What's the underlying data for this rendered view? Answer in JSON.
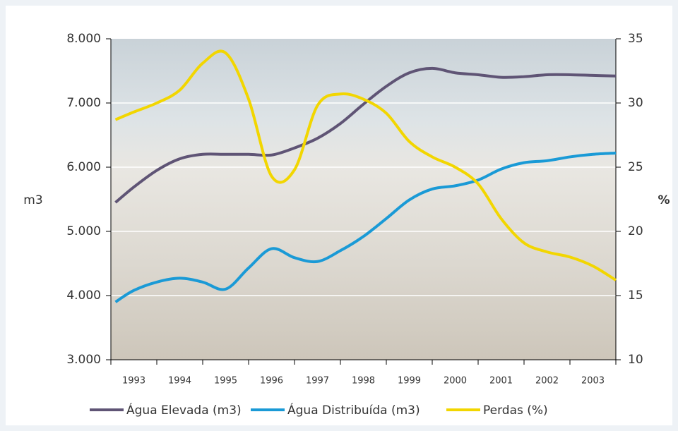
{
  "chart_data": {
    "type": "line",
    "x": [
      1992.6,
      1993,
      1993.5,
      1994,
      1994.5,
      1995,
      1995.5,
      1996,
      1996.5,
      1997,
      1997.5,
      1998,
      1998.5,
      1999,
      1999.5,
      2000,
      2000.5,
      2001,
      2001.5,
      2002,
      2002.5,
      2003,
      2003.5
    ],
    "xlim": [
      1992.5,
      2003.5
    ],
    "xticks": [
      1993,
      1994,
      1995,
      1996,
      1997,
      1998,
      1999,
      2000,
      2001,
      2002,
      2003
    ],
    "ylabel": "m3",
    "y2label": "%",
    "ylim": [
      3000,
      8000
    ],
    "yticks": [
      {
        "value": 3000,
        "label": "3.000"
      },
      {
        "value": 4000,
        "label": "4.000"
      },
      {
        "value": 5000,
        "label": "5.000"
      },
      {
        "value": 6000,
        "label": "6.000"
      },
      {
        "value": 7000,
        "label": "7.000"
      },
      {
        "value": 8000,
        "label": "8.000"
      }
    ],
    "y2lim": [
      10,
      35
    ],
    "y2ticks": [
      10,
      15,
      20,
      25,
      30,
      35
    ],
    "grid": true,
    "legend": "bottom",
    "series": [
      {
        "name": "Água Elevada (m3)",
        "color": "#5f5475",
        "values": [
          5450,
          5690,
          5950,
          6130,
          6200,
          6200,
          6200,
          6190,
          6300,
          6450,
          6680,
          6980,
          7260,
          7470,
          7540,
          7470,
          7440,
          7400,
          7410,
          7440,
          7440,
          7430,
          7420
        ]
      },
      {
        "name": "Água Distribuída (m3)",
        "color": "#1a9ad6",
        "values": [
          3900,
          4080,
          4210,
          4270,
          4210,
          4100,
          4430,
          4730,
          4590,
          4530,
          4700,
          4920,
          5200,
          5490,
          5660,
          5710,
          5800,
          5970,
          6070,
          6100,
          6160,
          6200,
          6220
        ]
      },
      {
        "name": "Perdas (%)",
        "color": "#f2d600",
        "axis": "y2",
        "values": [
          28.7,
          29.3,
          30.0,
          31.0,
          33.1,
          33.9,
          30.3,
          24.3,
          24.8,
          29.8,
          30.7,
          30.3,
          29.2,
          27.0,
          25.8,
          25.0,
          23.7,
          21.0,
          19.1,
          18.4,
          18.0,
          17.3,
          16.2
        ]
      }
    ]
  }
}
